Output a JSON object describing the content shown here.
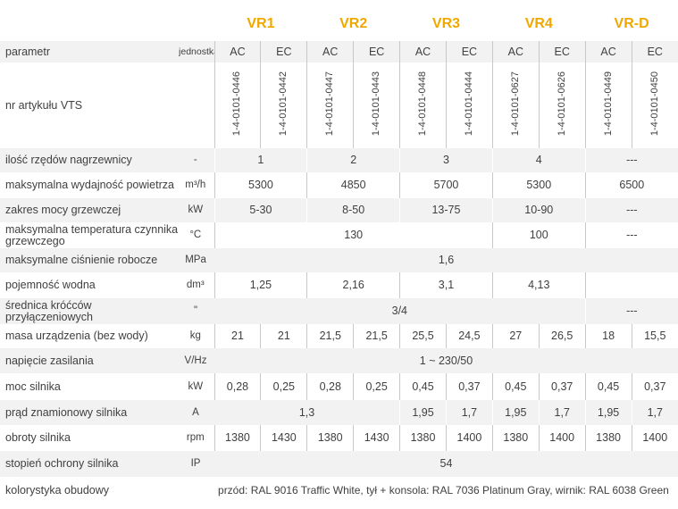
{
  "models": [
    "VR1",
    "VR2",
    "VR3",
    "VR4",
    "VR-D"
  ],
  "header": {
    "param_label": "parametr",
    "unit_label": "jednostka",
    "sub": [
      "AC",
      "EC",
      "AC",
      "EC",
      "AC",
      "EC",
      "AC",
      "EC",
      "AC",
      "EC"
    ]
  },
  "article": {
    "label": "nr artykułu VTS",
    "codes": [
      "1-4-0101-0446",
      "1-4-0101-0442",
      "1-4-0101-0447",
      "1-4-0101-0443",
      "1-4-0101-0448",
      "1-4-0101-0444",
      "1-4-0101-0627",
      "1-4-0101-0626",
      "1-4-0101-0449",
      "1-4-0101-0450"
    ]
  },
  "rows": {
    "rzedy": {
      "label": "ilość rzędów  nagrzewnicy",
      "unit": "-",
      "values": [
        "1",
        "2",
        "3",
        "4",
        "---"
      ]
    },
    "wydajnosc": {
      "label": "maksymalna wydajność powietrza",
      "unit": "m³/h",
      "values": [
        "5300",
        "4850",
        "5700",
        "5300",
        "6500"
      ]
    },
    "moc": {
      "label": "zakres mocy  grzewczej",
      "unit": "kW",
      "values": [
        "5-30",
        "8-50",
        "13-75",
        "10-90",
        "---"
      ]
    },
    "temp": {
      "label": "maksymalna temperatura czynnika grzewczego",
      "unit": "°C",
      "values": [
        "130",
        "100",
        "---"
      ]
    },
    "cisnienie": {
      "label": "maksymalne  ciśnienie robocze",
      "unit": "MPa",
      "values": [
        "1,6"
      ]
    },
    "pojemnosc": {
      "label": "pojemność wodna",
      "unit": "dm³",
      "values": [
        "1,25",
        "2,16",
        "3,1",
        "4,13"
      ]
    },
    "krocce": {
      "label": "średnica króćców przyłączeniowych",
      "unit": "\"",
      "values": [
        "3/4",
        "---"
      ]
    },
    "masa": {
      "label": "masa urządzenia  (bez wody)",
      "unit": "kg",
      "values": [
        "21",
        "21",
        "21,5",
        "21,5",
        "25,5",
        "24,5",
        "27",
        "26,5",
        "18",
        "15,5"
      ]
    },
    "napiecie": {
      "label": "napięcie zasilania",
      "unit": "V/Hz",
      "values": [
        "1 ~ 230/50"
      ]
    },
    "moc_silnika": {
      "label": "moc silnika",
      "unit": "kW",
      "values": [
        "0,28",
        "0,25",
        "0,28",
        "0,25",
        "0,45",
        "0,37",
        "0,45",
        "0,37",
        "0,45",
        "0,37"
      ]
    },
    "prad": {
      "label": "prąd znamionowy  silnika",
      "unit": "A",
      "values": [
        "1,3",
        "1,95",
        "1,7",
        "1,95",
        "1,7",
        "1,95",
        "1,7"
      ]
    },
    "obroty": {
      "label": "obroty silnika",
      "unit": "rpm",
      "values": [
        "1380",
        "1430",
        "1380",
        "1430",
        "1380",
        "1400",
        "1380",
        "1400",
        "1380",
        "1400"
      ]
    },
    "ochrona": {
      "label": "stopień ochrony silnika",
      "unit": "IP",
      "values": [
        "54"
      ]
    },
    "kolorystyka": {
      "label": "kolorystyka obudowy",
      "unit": "",
      "values": [
        "przód: RAL 9016 Traffic White, tył + konsola: RAL 7036 Platinum Gray, wirnik: RAL 6038 Green"
      ]
    }
  },
  "colors": {
    "accent": "#f0a800",
    "shade": "#f2f2f2",
    "text": "#404040"
  }
}
